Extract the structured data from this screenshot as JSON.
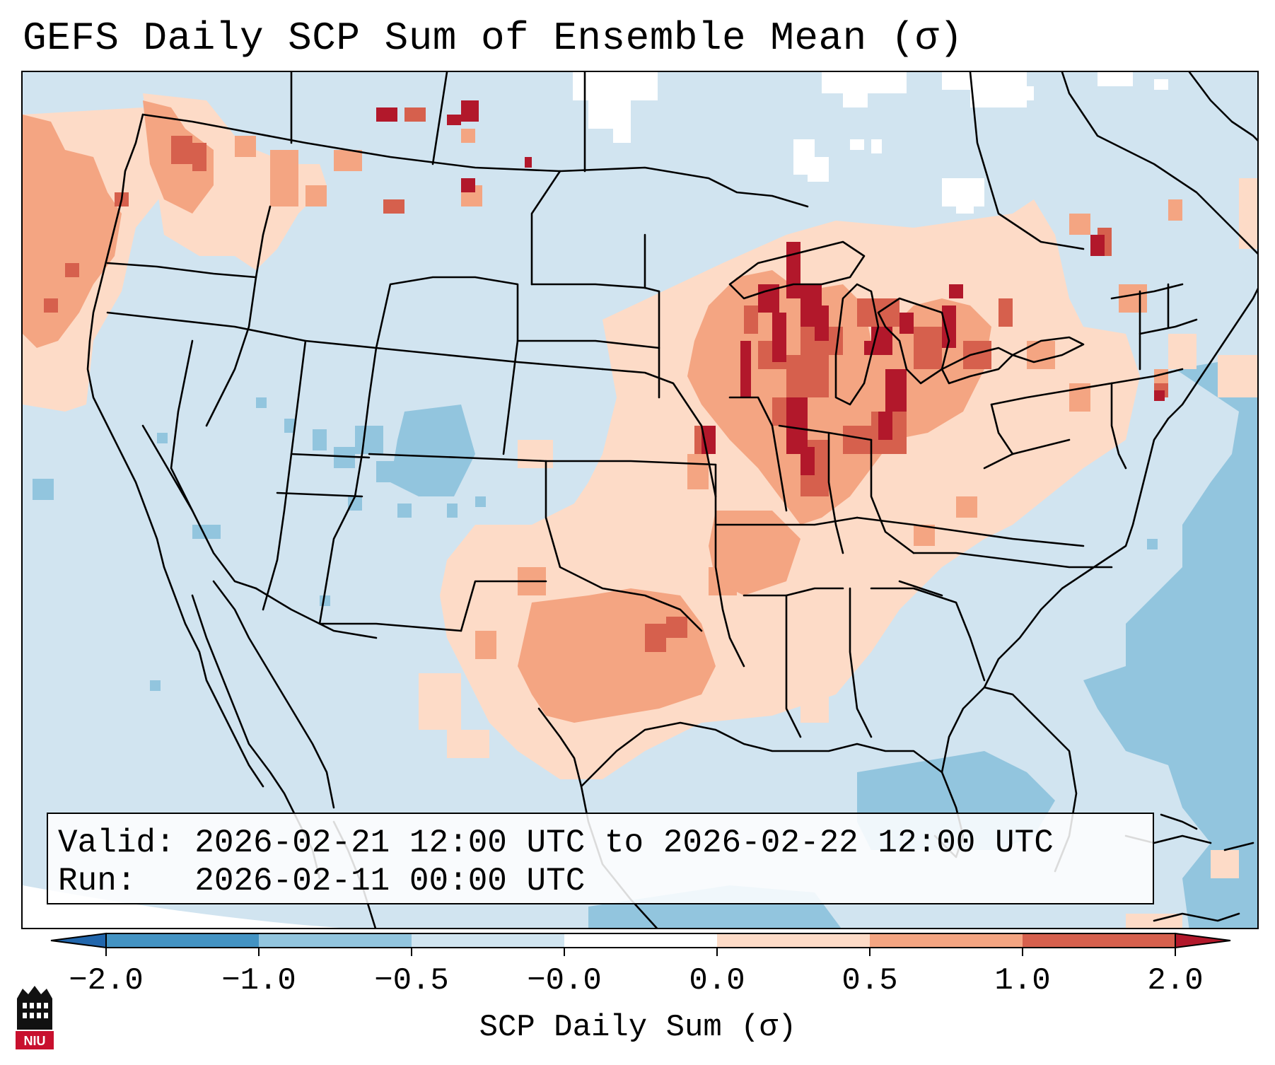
{
  "title": "GEFS Daily SCP Sum of Ensemble Mean (σ)",
  "info": {
    "valid": "Valid: 2026-02-21 12:00 UTC to 2026-02-22 12:00 UTC",
    "run": "Run:   2026-02-11 00:00 UTC"
  },
  "colorbar": {
    "label": "SCP Daily Sum (σ)",
    "ticks": [
      "−2.0",
      "−1.0",
      "−0.5",
      "−0.0",
      "0.0",
      "0.5",
      "1.0",
      "2.0"
    ],
    "colors": [
      "#2166ac",
      "#4393c3",
      "#92c5de",
      "#d1e5f0",
      "#ffffff",
      "#fddbc7",
      "#f4a582",
      "#d6604d",
      "#b2182b"
    ]
  },
  "legend_colors": {
    "ocean_background": "#d1e4f0",
    "light_blue": "#92c5de",
    "white": "#ffffff",
    "light_red": "#fddbc7",
    "medium_red": "#f4a582",
    "dark_red": "#d6604d",
    "deepest_red": "#b2182b"
  },
  "logo": {
    "text": "NIU"
  }
}
